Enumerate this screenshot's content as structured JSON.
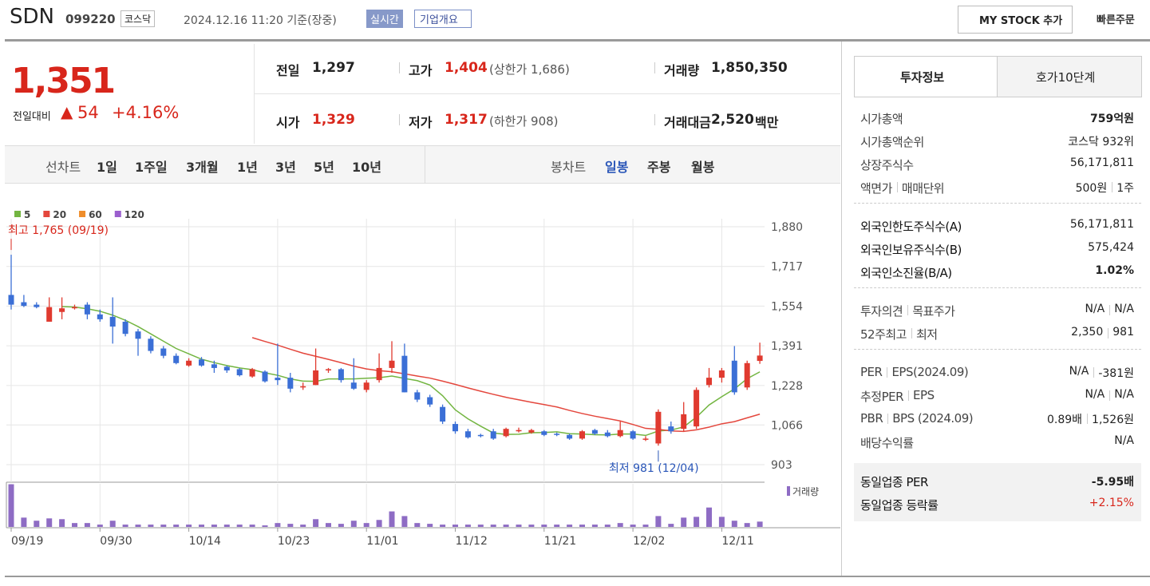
{
  "header": {
    "name": "SDN",
    "code": "099220",
    "market": "코스닥",
    "datetime": "2024.12.16 11:20 기준(장중)",
    "realtime": "실시간",
    "overview": "기업개요",
    "mystock": "MY STOCK 추가",
    "quick_order": "빠른주문"
  },
  "price": {
    "current": "1,351",
    "change_label": "전일대비",
    "change": "54",
    "change_rate": "+4.16%"
  },
  "quote": [
    {
      "label": "전일",
      "value": "1,297"
    },
    {
      "label": "고가",
      "value": "1,404",
      "note": "(상한가 1,686)"
    },
    {
      "label": "거래량",
      "value": "1,850,350"
    },
    {
      "label": "시가",
      "value": "1,329"
    },
    {
      "label": "저가",
      "value": "1,317",
      "note": "(하한가 908)"
    },
    {
      "label": "거래대금",
      "value": "2,520",
      "unit": "백만"
    }
  ],
  "line_tabs": {
    "label": "선차트",
    "items": [
      "1일",
      "1주일",
      "3개월",
      "1년",
      "3년",
      "5년",
      "10년"
    ]
  },
  "candle_tabs": {
    "label": "봉차트",
    "items": [
      "일봉",
      "주봉",
      "월봉"
    ]
  },
  "chart_data": {
    "type": "candlestick",
    "series": [
      {
        "name": "5",
        "color": "#73b541"
      },
      {
        "name": "20",
        "color": "#e4473d"
      },
      {
        "name": "60",
        "color": "#ef8d2a"
      },
      {
        "name": "120",
        "color": "#9b5fce"
      }
    ],
    "up_color": "#e03a2f",
    "down_color": "#3b6fd6",
    "volume_color": "#8e6cc4",
    "open": [
      1600,
      1570,
      1560,
      1490,
      1530,
      1545,
      1560,
      1520,
      1510,
      1490,
      1450,
      1420,
      1380,
      1350,
      1310,
      1335,
      1315,
      1305,
      1295,
      1265,
      1285,
      1260,
      1260,
      1220,
      1230,
      1290,
      1295,
      1240,
      1210,
      1250,
      1300,
      1350,
      1200,
      1180,
      1140,
      1070,
      1040,
      1025,
      1040,
      1020,
      1040,
      1035,
      1040,
      1030,
      1025,
      1010,
      1045,
      1035,
      1020,
      1040,
      1005,
      990,
      1060,
      1050,
      1060,
      1230,
      1260,
      1330,
      1220,
      1329
    ],
    "high": [
      1765,
      1600,
      1570,
      1590,
      1590,
      1560,
      1570,
      1540,
      1590,
      1500,
      1460,
      1430,
      1390,
      1360,
      1340,
      1345,
      1330,
      1310,
      1300,
      1300,
      1290,
      1400,
      1280,
      1240,
      1380,
      1300,
      1300,
      1340,
      1250,
      1360,
      1410,
      1400,
      1210,
      1190,
      1150,
      1080,
      1050,
      1030,
      1050,
      1055,
      1055,
      1050,
      1045,
      1035,
      1030,
      1045,
      1050,
      1045,
      1080,
      1045,
      1020,
      1130,
      1080,
      1160,
      1220,
      1300,
      1300,
      1390,
      1330,
      1404
    ],
    "low": [
      1540,
      1550,
      1545,
      1490,
      1500,
      1540,
      1500,
      1490,
      1400,
      1430,
      1350,
      1360,
      1340,
      1315,
      1305,
      1305,
      1280,
      1280,
      1265,
      1260,
      1240,
      1230,
      1200,
      1210,
      1230,
      1280,
      1240,
      1210,
      1200,
      1240,
      1280,
      1200,
      1160,
      1140,
      1070,
      1030,
      1010,
      1015,
      1005,
      1015,
      1035,
      1030,
      1020,
      1020,
      1005,
      1005,
      1025,
      1015,
      1015,
      1005,
      1000,
      981,
      1030,
      1040,
      1050,
      1220,
      1240,
      1190,
      1210,
      1317
    ],
    "close": [
      1560,
      1555,
      1550,
      1550,
      1545,
      1550,
      1520,
      1500,
      1470,
      1440,
      1420,
      1370,
      1350,
      1320,
      1330,
      1310,
      1300,
      1290,
      1270,
      1295,
      1245,
      1250,
      1215,
      1225,
      1290,
      1295,
      1250,
      1215,
      1240,
      1300,
      1330,
      1200,
      1170,
      1150,
      1080,
      1040,
      1015,
      1020,
      1010,
      1050,
      1045,
      1045,
      1025,
      1025,
      1010,
      1040,
      1030,
      1020,
      1045,
      1010,
      1010,
      1120,
      1040,
      1110,
      1210,
      1260,
      1290,
      1200,
      1320,
      1351
    ],
    "volume": [
      14850000,
      3240000,
      2160000,
      2970000,
      2700000,
      1350000,
      1350000,
      810000,
      2160000,
      810000,
      810000,
      810000,
      810000,
      810000,
      810000,
      810000,
      810000,
      810000,
      810000,
      810000,
      540000,
      1350000,
      1080000,
      810000,
      2700000,
      1350000,
      1080000,
      2160000,
      1350000,
      2430000,
      5400000,
      3780000,
      1350000,
      1080000,
      810000,
      810000,
      810000,
      810000,
      810000,
      810000,
      810000,
      810000,
      810000,
      810000,
      810000,
      810000,
      810000,
      810000,
      1350000,
      810000,
      810000,
      3780000,
      1080000,
      3240000,
      3510000,
      6750000,
      3510000,
      2160000,
      1350000,
      1850350
    ],
    "ylim": [
      903,
      1880
    ],
    "yticks": [
      903,
      {
        "value": 1066,
        "label": "1,066"
      },
      {
        "value": 1228,
        "label": "1,228"
      },
      {
        "value": 1391,
        "label": "1,391"
      },
      {
        "value": 1554,
        "label": "1,554"
      },
      {
        "value": 1717,
        "label": "1,717"
      },
      {
        "value": 1880,
        "label": "1,880"
      }
    ],
    "xticks": [
      {
        "value": 0,
        "label": "09/19"
      },
      {
        "value": 7,
        "label": "09/30"
      },
      {
        "value": 14,
        "label": "10/14"
      },
      {
        "value": 21,
        "label": "10/23"
      },
      {
        "value": 28,
        "label": "11/01"
      },
      {
        "value": 35,
        "label": "11/12"
      },
      {
        "value": 42,
        "label": "11/21"
      },
      {
        "value": 49,
        "label": "12/02"
      },
      {
        "value": 56,
        "label": "12/11"
      }
    ],
    "volume_ylim": [
      0,
      15000000
    ],
    "volume_label": "거래량",
    "annotations": [
      {
        "text": "최고 1,765 (09/19)",
        "index": 0,
        "value": 1765
      },
      {
        "text": "최저 981 (12/04)",
        "index": 51,
        "value": 981
      }
    ],
    "grid": true
  },
  "invest": {
    "tabs": [
      "투자정보",
      "호가10단계"
    ],
    "sections": [
      [
        {
          "labels": [
            "시가총액"
          ],
          "values": [
            "759억원"
          ]
        },
        {
          "labels": [
            "시가총액순위"
          ],
          "values": [
            "코스닥 932위"
          ]
        },
        {
          "labels": [
            "상장주식수"
          ],
          "values": [
            "56,171,811"
          ]
        },
        {
          "labels": [
            "액면가",
            "매매단위"
          ],
          "values": [
            "500원",
            "1주"
          ]
        }
      ],
      [
        {
          "labels": [
            "외국인한도주식수(A)"
          ],
          "values": [
            "56,171,811"
          ]
        },
        {
          "labels": [
            "외국인보유주식수(B)"
          ],
          "values": [
            "575,424"
          ]
        },
        {
          "labels": [
            "외국인소진율(B/A)"
          ],
          "values": [
            "1.02%"
          ]
        }
      ],
      [
        {
          "labels": [
            "투자의견",
            "목표주가"
          ],
          "values": [
            "N/A",
            "N/A"
          ]
        },
        {
          "labels": [
            "52주최고",
            "최저"
          ],
          "values": [
            "2,350",
            "981"
          ]
        }
      ],
      [
        {
          "labels": [
            "PER",
            "EPS(2024.09)"
          ],
          "values": [
            "N/A",
            "-381원"
          ]
        },
        {
          "labels": [
            "추정PER",
            "EPS"
          ],
          "values": [
            "N/A",
            "N/A"
          ]
        },
        {
          "labels": [
            "PBR",
            "BPS (2024.09)"
          ],
          "values": [
            "0.89배",
            "1,526원"
          ]
        },
        {
          "labels": [
            "배당수익률"
          ],
          "values": [
            "N/A"
          ]
        }
      ],
      [
        {
          "labels": [
            "동일업종 PER"
          ],
          "values": [
            "-5.95배"
          ]
        },
        {
          "labels": [
            "동일업종 등락률"
          ],
          "values": [
            "+2.15%"
          ]
        }
      ]
    ]
  }
}
